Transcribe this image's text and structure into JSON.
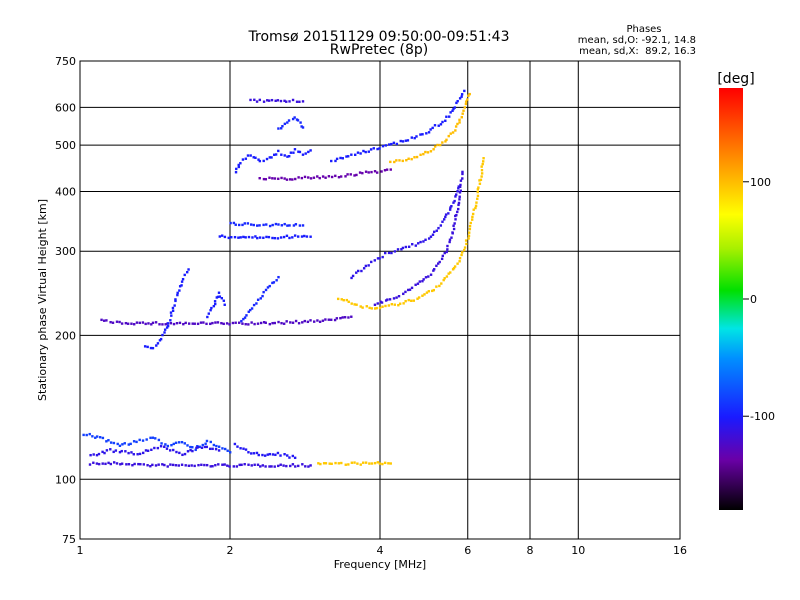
{
  "header": {
    "title_line1": "Tromsø 20151129 09:50:00-09:51:43",
    "title_line2": "RwPretec (8p)",
    "phases_title": "Phases",
    "phases_line1": "mean, sd,O: -92.1, 14.8",
    "phases_line2": "mean, sd,X:  89.2, 16.3"
  },
  "colorbar": {
    "label": "[deg]",
    "range": [
      -180,
      180
    ],
    "tick_labels": [
      "100",
      "0",
      "-100"
    ],
    "tick_values": [
      100,
      0,
      -100
    ]
  },
  "chart_data": {
    "type": "scatter",
    "xlabel": "Frequency [MHz]",
    "ylabel": "Stationary phase Virtual Height [km]",
    "x_scale": "log",
    "y_scale": "log",
    "xlim": [
      1,
      16
    ],
    "ylim": [
      75,
      750
    ],
    "x_ticks": [
      1,
      2,
      4,
      6,
      8,
      10,
      16
    ],
    "x_tick_labels": [
      "1",
      "2",
      "4",
      "6",
      "8",
      "10",
      "16"
    ],
    "y_ticks": [
      75,
      100,
      200,
      300,
      400,
      500,
      600,
      750
    ],
    "y_tick_labels": [
      "75",
      "100",
      "200",
      "300",
      "400",
      "500",
      "600",
      "750"
    ],
    "grid": true,
    "color_encodes": "phase [deg]",
    "traces": [
      {
        "points": [
          [
            1.05,
            108
          ],
          [
            1.2,
            108
          ],
          [
            1.4,
            107
          ],
          [
            1.6,
            107
          ],
          [
            1.8,
            107
          ],
          [
            2.0,
            107
          ],
          [
            2.3,
            107
          ],
          [
            2.6,
            107
          ],
          [
            2.9,
            107
          ]
        ],
        "phase": -115
      },
      {
        "points": [
          [
            3.0,
            108
          ],
          [
            3.2,
            108
          ],
          [
            3.4,
            108
          ],
          [
            3.6,
            108
          ],
          [
            3.8,
            108
          ],
          [
            4.0,
            108
          ],
          [
            4.2,
            108
          ]
        ],
        "phase": 95
      },
      {
        "points": [
          [
            1.0,
            125
          ],
          [
            1.1,
            122
          ],
          [
            1.2,
            118
          ],
          [
            1.3,
            120
          ],
          [
            1.4,
            122
          ],
          [
            1.5,
            118
          ],
          [
            1.6,
            120
          ],
          [
            1.7,
            116
          ],
          [
            1.8,
            120
          ],
          [
            1.9,
            117
          ],
          [
            2.0,
            114
          ]
        ],
        "phase": -85
      },
      {
        "points": [
          [
            1.05,
            112
          ],
          [
            1.15,
            115
          ],
          [
            1.3,
            113
          ],
          [
            1.45,
            117
          ],
          [
            1.6,
            113
          ],
          [
            1.75,
            117
          ],
          [
            1.9,
            115
          ]
        ],
        "phase": -110
      },
      {
        "points": [
          [
            2.05,
            118
          ],
          [
            2.2,
            114
          ],
          [
            2.35,
            112
          ],
          [
            2.5,
            113
          ],
          [
            2.7,
            111
          ]
        ],
        "phase": -105
      },
      {
        "points": [
          [
            1.1,
            215
          ],
          [
            1.2,
            213
          ],
          [
            1.35,
            212
          ],
          [
            1.5,
            212
          ],
          [
            1.7,
            212
          ],
          [
            2.0,
            212
          ],
          [
            2.3,
            212
          ],
          [
            2.6,
            213
          ],
          [
            2.9,
            214
          ],
          [
            3.2,
            216
          ],
          [
            3.5,
            219
          ]
        ],
        "phase": -125
      },
      {
        "points": [
          [
            1.35,
            190
          ],
          [
            1.4,
            189
          ],
          [
            1.45,
            195
          ],
          [
            1.5,
            210
          ],
          [
            1.55,
            235
          ],
          [
            1.6,
            260
          ],
          [
            1.65,
            275
          ]
        ],
        "phase": -100
      },
      {
        "points": [
          [
            1.8,
            220
          ],
          [
            1.85,
            230
          ],
          [
            1.9,
            245
          ],
          [
            1.95,
            232
          ]
        ],
        "phase": -100
      },
      {
        "points": [
          [
            2.1,
            215
          ],
          [
            2.2,
            225
          ],
          [
            2.3,
            240
          ],
          [
            2.4,
            255
          ],
          [
            2.5,
            265
          ]
        ],
        "phase": -95
      },
      {
        "points": [
          [
            3.3,
            240
          ],
          [
            3.5,
            234
          ],
          [
            3.7,
            229
          ],
          [
            4.0,
            229
          ],
          [
            4.4,
            233
          ],
          [
            4.8,
            240
          ],
          [
            5.2,
            252
          ],
          [
            5.5,
            268
          ],
          [
            5.8,
            290
          ],
          [
            6.0,
            320
          ],
          [
            6.2,
            370
          ],
          [
            6.35,
            420
          ],
          [
            6.45,
            470
          ]
        ],
        "phase": 95
      },
      {
        "points": [
          [
            3.9,
            232
          ],
          [
            4.2,
            238
          ],
          [
            4.5,
            246
          ],
          [
            4.8,
            258
          ],
          [
            5.1,
            272
          ],
          [
            5.4,
            296
          ],
          [
            5.6,
            330
          ],
          [
            5.75,
            380
          ],
          [
            5.85,
            440
          ]
        ],
        "phase": -115
      },
      {
        "points": [
          [
            3.5,
            265
          ],
          [
            3.8,
            282
          ],
          [
            4.1,
            296
          ],
          [
            4.4,
            304
          ],
          [
            4.7,
            310
          ],
          [
            5.0,
            320
          ],
          [
            5.3,
            340
          ],
          [
            5.55,
            370
          ],
          [
            5.75,
            410
          ]
        ],
        "phase": -110
      },
      {
        "points": [
          [
            1.9,
            322
          ],
          [
            2.1,
            321
          ],
          [
            2.3,
            321
          ],
          [
            2.5,
            321
          ],
          [
            2.7,
            322
          ],
          [
            2.9,
            322
          ]
        ],
        "phase": -100
      },
      {
        "points": [
          [
            2.0,
            343
          ],
          [
            2.2,
            342
          ],
          [
            2.4,
            341
          ],
          [
            2.6,
            341
          ],
          [
            2.8,
            340
          ]
        ],
        "phase": -95
      },
      {
        "points": [
          [
            2.3,
            425
          ],
          [
            2.6,
            426
          ],
          [
            2.9,
            428
          ],
          [
            3.2,
            430
          ],
          [
            3.5,
            434
          ],
          [
            3.9,
            440
          ],
          [
            4.2,
            445
          ]
        ],
        "phase": -135
      },
      {
        "points": [
          [
            3.2,
            465
          ],
          [
            3.6,
            480
          ],
          [
            4.0,
            495
          ],
          [
            4.5,
            512
          ],
          [
            5.0,
            535
          ],
          [
            5.4,
            565
          ],
          [
            5.7,
            610
          ],
          [
            5.9,
            650
          ]
        ],
        "phase": -100
      },
      {
        "points": [
          [
            4.2,
            460
          ],
          [
            4.7,
            470
          ],
          [
            5.0,
            485
          ],
          [
            5.4,
            510
          ],
          [
            5.7,
            545
          ],
          [
            5.9,
            600
          ],
          [
            6.05,
            640
          ]
        ],
        "phase": 100
      },
      {
        "points": [
          [
            2.2,
            620
          ],
          [
            2.4,
            620
          ],
          [
            2.6,
            619
          ],
          [
            2.8,
            618
          ]
        ],
        "phase": -115
      },
      {
        "points": [
          [
            2.5,
            540
          ],
          [
            2.6,
            560
          ],
          [
            2.7,
            575
          ],
          [
            2.8,
            545
          ]
        ],
        "phase": -95
      },
      {
        "points": [
          [
            2.05,
            440
          ],
          [
            2.1,
            460
          ],
          [
            2.2,
            478
          ],
          [
            2.3,
            462
          ],
          [
            2.4,
            470
          ],
          [
            2.5,
            485
          ],
          [
            2.6,
            472
          ],
          [
            2.7,
            490
          ],
          [
            2.8,
            480
          ],
          [
            2.9,
            488
          ]
        ],
        "phase": -100
      }
    ]
  }
}
